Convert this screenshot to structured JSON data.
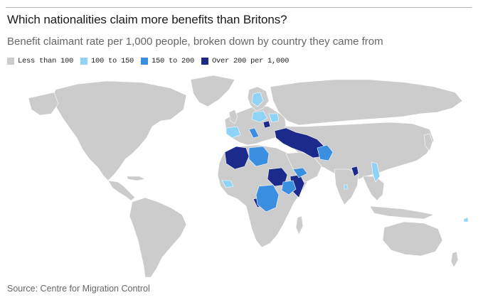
{
  "header": {
    "title": "Which nationalities claim more benefits than Britons?",
    "subtitle": "Benefit claimant rate per 1,000 people, broken down by country they came from"
  },
  "legend": {
    "items": [
      {
        "label": "Less than 100",
        "color": "#cccccc"
      },
      {
        "label": "100 to 150",
        "color": "#8fd3f7"
      },
      {
        "label": "150 to 200",
        "color": "#3a8fe0"
      },
      {
        "label": "Over 200 per 1,000",
        "color": "#1c2a8c"
      }
    ]
  },
  "map": {
    "colors": {
      "base": "#cccccc",
      "border": "#ffffff",
      "ocean": "#ffffff",
      "light": "#8fd3f7",
      "mid": "#3a8fe0",
      "dark": "#1c2a8c"
    }
  },
  "footer": {
    "source": "Source: Centre for Migration Control"
  }
}
